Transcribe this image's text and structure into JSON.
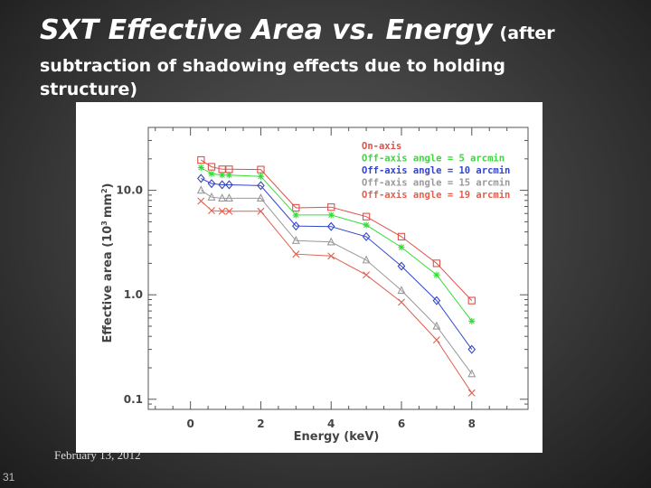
{
  "slide": {
    "title": "SXT Effective Area vs. Energy",
    "title_paren": "(after",
    "subtitle": "subtraction of shadowing effects due to holding structure)",
    "date": "February 13, 2012",
    "slide_number": "31"
  },
  "chart_data": {
    "type": "line",
    "xlabel": "Energy (keV)",
    "ylabel": "Effective area (10",
    "ylabel_sup": "3",
    "ylabel_unit": "mm",
    "ylabel_sup2": "2",
    "ylabel_close": ")",
    "xlim": [
      -1.2,
      9.6
    ],
    "ylim": [
      0.08,
      40
    ],
    "yscale": "log",
    "x_ticks": [
      0,
      2,
      4,
      6,
      8
    ],
    "x_tick_labels": [
      "0",
      "2",
      "4",
      "6",
      "8"
    ],
    "y_ticks": [
      0.1,
      1.0,
      10.0
    ],
    "y_tick_labels": [
      "0.1",
      "1.0",
      "10.0"
    ],
    "x": [
      0.3,
      0.6,
      0.9,
      1.1,
      2.0,
      3.0,
      4.0,
      5.0,
      6.0,
      7.0,
      8.0
    ],
    "series": [
      {
        "name": "On-axis",
        "color": "#e0504a",
        "marker": "square",
        "values": [
          19.5,
          16.8,
          15.9,
          15.9,
          15.8,
          6.8,
          6.9,
          5.6,
          3.6,
          2.0,
          0.88
        ]
      },
      {
        "name": "Off-axis angle = 5 arcmin",
        "color": "#33dd33",
        "marker": "asterisk",
        "values": [
          16.5,
          14.4,
          14.0,
          14.0,
          13.6,
          5.8,
          5.8,
          4.65,
          2.85,
          1.55,
          0.56
        ]
      },
      {
        "name": "Off-axis angle = 10 arcmin",
        "color": "#3344cc",
        "marker": "diamond",
        "values": [
          13.0,
          11.6,
          11.3,
          11.3,
          11.1,
          4.55,
          4.5,
          3.6,
          1.88,
          0.88,
          0.3
        ]
      },
      {
        "name": "Off-axis angle = 15 arcmin",
        "color": "#999999",
        "marker": "triangle",
        "values": [
          10.0,
          8.6,
          8.4,
          8.4,
          8.4,
          3.3,
          3.2,
          2.15,
          1.1,
          0.5,
          0.175
        ]
      },
      {
        "name": "Off-axis angle = 19 arcmin",
        "color": "#e06050",
        "marker": "x",
        "values": [
          7.9,
          6.4,
          6.3,
          6.3,
          6.3,
          2.45,
          2.35,
          1.55,
          0.85,
          0.37,
          0.115
        ]
      }
    ]
  }
}
